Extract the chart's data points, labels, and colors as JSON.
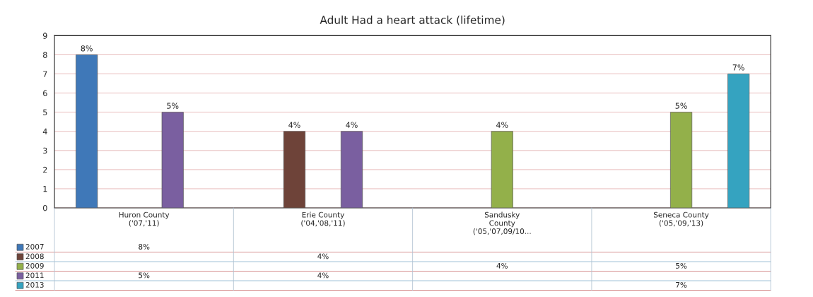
{
  "chart_data": {
    "type": "bar",
    "title": "Adult Had a heart attack (lifetime)",
    "categories": [
      "Huron County\n('07,'11)",
      "Erie County\n('04,'08,'11)",
      "Sandusky\nCounty\n('05,'07,09/10...",
      "Seneca County\n('05,'09,'13)"
    ],
    "series": [
      {
        "name": "2007",
        "color": "#3f78b8",
        "values": [
          8,
          null,
          null,
          null
        ],
        "value_labels": [
          "8%",
          null,
          null,
          null
        ]
      },
      {
        "name": "2008",
        "color": "#6e4339",
        "values": [
          null,
          4,
          null,
          null
        ],
        "value_labels": [
          null,
          "4%",
          null,
          null
        ]
      },
      {
        "name": "2009",
        "color": "#93b04a",
        "values": [
          null,
          null,
          4,
          5
        ],
        "value_labels": [
          null,
          null,
          "4%",
          "5%"
        ]
      },
      {
        "name": "2011",
        "color": "#7a5fa0",
        "values": [
          5,
          4,
          null,
          null
        ],
        "value_labels": [
          "5%",
          "4%",
          null,
          null
        ]
      },
      {
        "name": "2013",
        "color": "#35a3c0",
        "values": [
          null,
          null,
          null,
          7
        ],
        "value_labels": [
          null,
          null,
          null,
          "7%"
        ]
      }
    ],
    "ylim": [
      0,
      9
    ],
    "yticks": [
      0,
      1,
      2,
      3,
      4,
      5,
      6,
      7,
      8,
      9
    ],
    "grid": "y",
    "legend": "bottom left"
  }
}
